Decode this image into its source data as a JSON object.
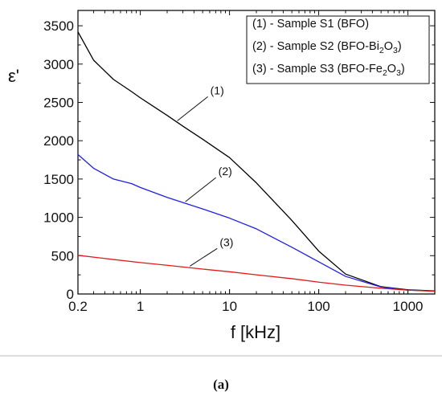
{
  "chart_data": {
    "type": "line",
    "xlabel": "f [kHz]",
    "ylabel": "ε'",
    "xscale": "log",
    "xlim": [
      0.2,
      2000
    ],
    "ylim": [
      0,
      3700
    ],
    "x_ticks": [
      0.2,
      1,
      10,
      100,
      1000
    ],
    "x_tick_labels": [
      "0.2",
      "1",
      "10",
      "100",
      "1000"
    ],
    "y_ticks": [
      0,
      500,
      1000,
      1500,
      2000,
      2500,
      3000,
      3500
    ],
    "y_tick_labels": [
      "0",
      "500",
      "1000",
      "1500",
      "2000",
      "2500",
      "3000",
      "3500"
    ],
    "grid": false,
    "legend_position": "top-right",
    "caption": "(a)",
    "series": [
      {
        "name": "(1) - Sample S1 (BFO)",
        "legend_parts": [
          "(1) - Sample S1 (BFO)"
        ],
        "callout": "(1)",
        "color": "#000000",
        "x": [
          0.2,
          0.3,
          0.5,
          0.8,
          1,
          2,
          3,
          5,
          10,
          20,
          50,
          100,
          200,
          500,
          1000,
          2000
        ],
        "y": [
          3420,
          3050,
          2800,
          2640,
          2560,
          2330,
          2190,
          2020,
          1780,
          1450,
          960,
          560,
          260,
          95,
          55,
          40
        ]
      },
      {
        "name": "(2) - Sample S2 (BFO-Bi2O3)",
        "legend_parts": [
          "(2) - Sample S2 (BFO-Bi",
          "2",
          "O",
          "3",
          ")"
        ],
        "callout": "(2)",
        "color": "#1f1fe6",
        "x": [
          0.2,
          0.3,
          0.5,
          0.8,
          1,
          2,
          5,
          10,
          20,
          50,
          100,
          200,
          500,
          1000,
          2000
        ],
        "y": [
          1820,
          1640,
          1500,
          1440,
          1390,
          1260,
          1110,
          990,
          850,
          610,
          420,
          230,
          90,
          50,
          38
        ]
      },
      {
        "name": "(3) - Sample S3 (BFO-Fe2O3)",
        "legend_parts": [
          "(3) - Sample S3 (BFO-Fe",
          "2",
          "O",
          "3",
          ")"
        ],
        "callout": "(3)",
        "color": "#e11a1a",
        "x": [
          0.2,
          0.5,
          1,
          2,
          5,
          10,
          20,
          50,
          100,
          200,
          500,
          1000,
          2000
        ],
        "y": [
          505,
          450,
          410,
          375,
          325,
          290,
          250,
          200,
          155,
          115,
          75,
          50,
          35
        ]
      }
    ]
  }
}
